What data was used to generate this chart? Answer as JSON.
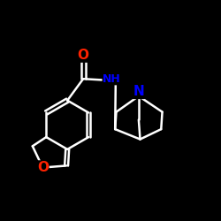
{
  "bg_color": "#000000",
  "bond_color": "#ffffff",
  "atom_colors": {
    "O": "#ff2200",
    "N": "#0000ff",
    "C": "#ffffff",
    "H": "#ffffff"
  },
  "bond_width": 1.8,
  "font_size_atom": 10
}
